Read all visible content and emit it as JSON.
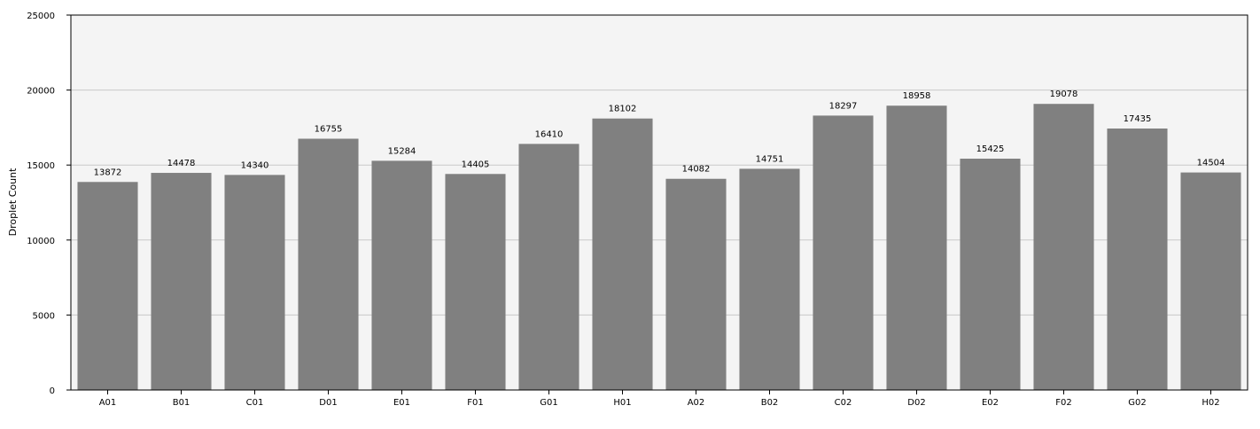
{
  "chart_data": {
    "type": "bar",
    "categories": [
      "A01",
      "B01",
      "C01",
      "D01",
      "E01",
      "F01",
      "G01",
      "H01",
      "A02",
      "B02",
      "C02",
      "D02",
      "E02",
      "F02",
      "G02",
      "H02"
    ],
    "values": [
      13872,
      14478,
      14340,
      16755,
      15284,
      14405,
      16410,
      18102,
      14082,
      14751,
      18297,
      18958,
      15425,
      19078,
      17435,
      14504
    ],
    "title": "",
    "xlabel": "",
    "ylabel": "Droplet Count",
    "ylim": [
      0,
      25000
    ],
    "yticks": [
      0,
      5000,
      10000,
      15000,
      20000,
      25000
    ],
    "grid": true,
    "legend": "none",
    "colors": {
      "bar": "#808080",
      "plot_background": "#f4f4f4",
      "gridline": "#c8c8c8",
      "axis": "#000000"
    }
  }
}
